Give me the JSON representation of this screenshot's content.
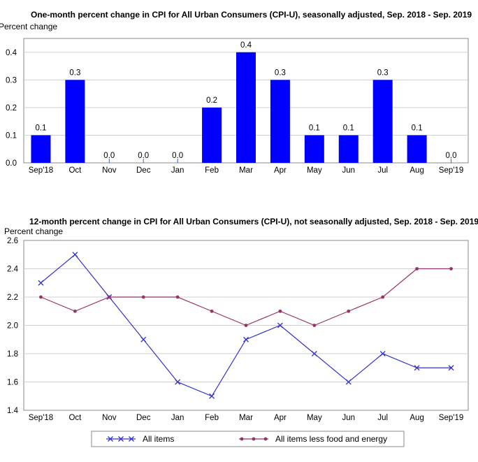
{
  "chart_data": [
    {
      "type": "bar",
      "title": "One-month percent change in CPI for All Urban Consumers (CPI-U), seasonally adjusted, Sep. 2018 - Sep. 2019",
      "ylabel": "Percent change",
      "xlabel": "",
      "categories": [
        "Sep'18",
        "Oct",
        "Nov",
        "Dec",
        "Jan",
        "Feb",
        "Mar",
        "Apr",
        "May",
        "Jun",
        "Jul",
        "Aug",
        "Sep'19"
      ],
      "values": [
        0.1,
        0.3,
        0.0,
        0.0,
        0.0,
        0.2,
        0.4,
        0.3,
        0.1,
        0.1,
        0.3,
        0.1,
        0.0
      ],
      "data_labels": [
        "0.1",
        "0.3",
        "0.0",
        "0.0",
        "0.0",
        "0.2",
        "0.4",
        "0.3",
        "0.1",
        "0.1",
        "0.3",
        "0.1",
        "0.0"
      ],
      "ylim": [
        0,
        0.45
      ],
      "yticks": [
        0.0,
        0.1,
        0.2,
        0.3,
        0.4
      ],
      "ytick_labels": [
        "0.0",
        "0.1",
        "0.2",
        "0.3",
        "0.4"
      ],
      "grid": true,
      "bar_color": "#0000ff"
    },
    {
      "type": "line",
      "title": "12-month percent change in CPI for All Urban Consumers (CPI-U), not seasonally adjusted, Sep. 2018 - Sep. 2019",
      "ylabel": "Percent change",
      "xlabel": "",
      "categories": [
        "Sep'18",
        "Oct",
        "Nov",
        "Dec",
        "Jan",
        "Feb",
        "Mar",
        "Apr",
        "May",
        "Jun",
        "Jul",
        "Aug",
        "Sep'19"
      ],
      "series": [
        {
          "name": "All items",
          "values": [
            2.3,
            2.5,
            2.2,
            1.9,
            1.6,
            1.5,
            1.9,
            2.0,
            1.8,
            1.6,
            1.8,
            1.7,
            1.7
          ],
          "color": "#3333cc",
          "marker": "x"
        },
        {
          "name": "All items less food and energy",
          "values": [
            2.2,
            2.1,
            2.2,
            2.2,
            2.2,
            2.1,
            2.0,
            2.1,
            2.0,
            2.1,
            2.2,
            2.4,
            2.4
          ],
          "color": "#993366",
          "marker": "dot"
        }
      ],
      "ylim": [
        1.4,
        2.6
      ],
      "yticks": [
        1.4,
        1.6,
        1.8,
        2.0,
        2.2,
        2.4,
        2.6
      ],
      "ytick_labels": [
        "1.4",
        "1.6",
        "1.8",
        "2.0",
        "2.2",
        "2.4",
        "2.6"
      ],
      "grid": true,
      "legend_position": "bottom"
    }
  ]
}
